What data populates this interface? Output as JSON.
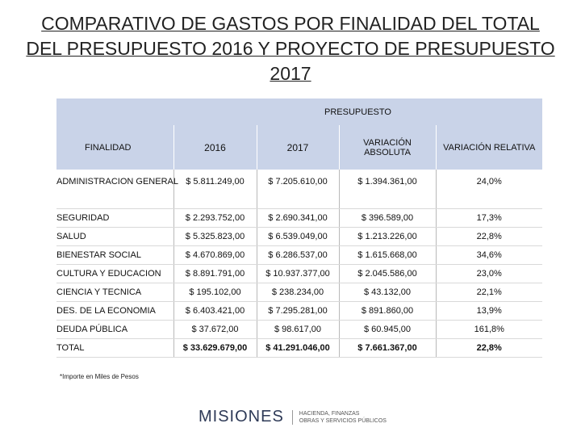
{
  "header": {
    "title": [
      "COMPARATIVO DE GASTOS POR FINALIDAD DEL TOTAL",
      "DEL PRESUPUESTO 2016 Y PROYECTO DE PRESUPUESTO",
      "2017"
    ]
  },
  "table": {
    "group_header": "PRESUPUESTO",
    "columns": [
      "FINALIDAD",
      "2016",
      "2017",
      "VARIACIÓN ABSOLUTA",
      "VARIACIÓN RELATIVA"
    ],
    "rows": [
      [
        "ADMINISTRACION GENERAL",
        "$ 5.811.249,00",
        "$ 7.205.610,00",
        "$ 1.394.361,00",
        "24,0%"
      ],
      [
        "SEGURIDAD",
        "$ 2.293.752,00",
        "$ 2.690.341,00",
        "$ 396.589,00",
        "17,3%"
      ],
      [
        "SALUD",
        "$ 5.325.823,00",
        "$ 6.539.049,00",
        "$ 1.213.226,00",
        "22,8%"
      ],
      [
        "BIENESTAR SOCIAL",
        "$ 4.670.869,00",
        "$ 6.286.537,00",
        "$ 1.615.668,00",
        "34,6%"
      ],
      [
        "CULTURA Y EDUCACION",
        "$ 8.891.791,00",
        "$ 10.937.377,00",
        "$ 2.045.586,00",
        "23,0%"
      ],
      [
        "CIENCIA Y TECNICA",
        "$ 195.102,00",
        "$ 238.234,00",
        "$ 43.132,00",
        "22,1%"
      ],
      [
        "DES. DE LA ECONOMIA",
        "$ 6.403.421,00",
        "$ 7.295.281,00",
        "$ 891.860,00",
        "13,9%"
      ],
      [
        "DEUDA PÚBLICA",
        "$ 37.672,00",
        "$ 98.617,00",
        "$ 60.945,00",
        "161,8%"
      ],
      [
        "TOTAL",
        "$ 33.629.679,00",
        "$ 41.291.046,00",
        "$ 7.661.367,00",
        "22,8%"
      ]
    ]
  },
  "footnote": "*Importe en Miles de Pesos",
  "logo": {
    "name": "MISIONES",
    "subtitle": [
      "HACIENDA, FINANZAS",
      "OBRAS Y SERVICIOS PÚBLICOS"
    ]
  }
}
